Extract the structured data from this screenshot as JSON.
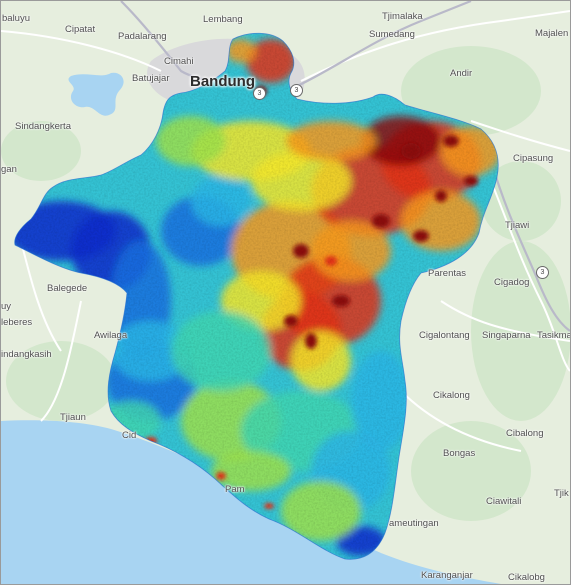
{
  "map": {
    "base_colors": {
      "land": "#e6eede",
      "forest": "#cfe5c9",
      "sea": "#a8d4f2",
      "urban": "#d8d8d8",
      "road": "#ffffff",
      "highway": "#b8b8c8"
    },
    "layer": {
      "type": "heatmap",
      "colormap": [
        "#0a2acc",
        "#1b70e0",
        "#2bb6e6",
        "#3fd6b2",
        "#9ee24c",
        "#f4e82c",
        "#f79a1c",
        "#e23216",
        "#8c0a0a"
      ]
    },
    "places": {
      "baluyu": "baluyu",
      "cipatat": "Cipatat",
      "lembang": "Lembang",
      "tjimalaka": "Tjimalaka",
      "padalarang": "Padalarang",
      "sumedang": "Sumedang",
      "majalen": "Majalen",
      "cimahi": "Cimahi",
      "andir": "Andir",
      "batujajar": "Batujajar",
      "bandung": "Bandung",
      "sindangkerta": "Sindangkerta",
      "cipasung": "Cipasung",
      "gan": "gan",
      "tjiawi": "Tjiawi",
      "balegede": "Balegede",
      "parentas": "Parentas",
      "cigadog": "Cigadog",
      "uy": "uy",
      "leberes": "leberes",
      "awilaga": "Awilaga",
      "cigalontang": "Cigalontang",
      "singaparna": "Singaparna",
      "tasikmala": "Tasikmal",
      "indangkasih": "indangkasih",
      "cikalong": "Cikalong",
      "tjiaun": "Tjiaun",
      "cid": "Cid",
      "cibalong": "Cibalong",
      "bongas": "Bongas",
      "ciawitali": "Ciawitali",
      "pam": "Pam",
      "tjik": "Tjik",
      "ameutingan": "ameutingan",
      "karanganjar": "Karanganjar",
      "cikalobg": "Cikalobg"
    },
    "shields": [
      "3",
      "3",
      "3"
    ]
  }
}
